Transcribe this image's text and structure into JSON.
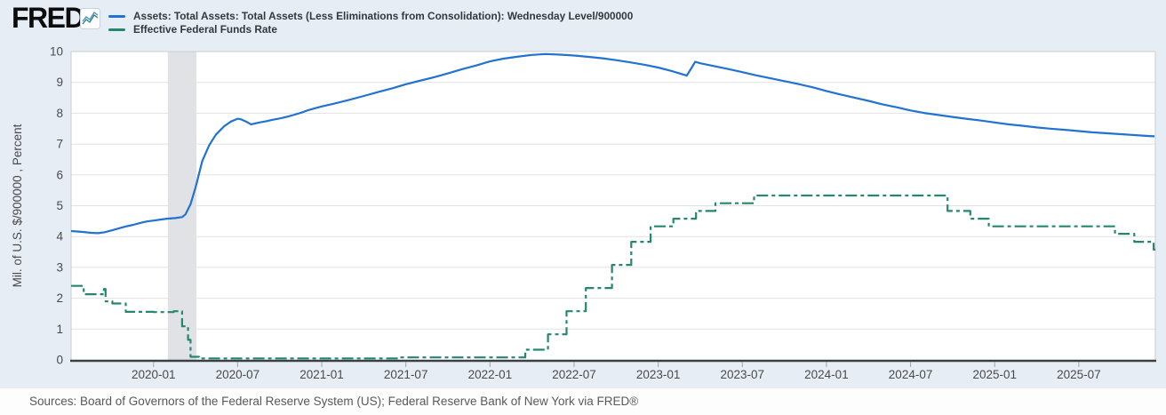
{
  "header": {
    "logo_text": "FRED",
    "logo_mark": "®",
    "legend": [
      {
        "label": "Assets: Total Assets: Total Assets (Less Eliminations from Consolidation): Wednesday Level/900000",
        "color": "#2272d2",
        "line_style": "solid"
      },
      {
        "label": "Effective Federal Funds Rate",
        "color": "#25876f",
        "line_style": "dash-dot"
      }
    ]
  },
  "footer": {
    "sources": "Sources: Board of Governors of the Federal Reserve System (US); Federal Reserve Bank of New York via FRED®"
  },
  "chart_data": {
    "type": "line",
    "ylabel": "Mil. of U.S. $/900000 , Percent",
    "ylim": [
      0,
      10
    ],
    "y_ticks": [
      0,
      1,
      2,
      3,
      4,
      5,
      6,
      7,
      8,
      9,
      10
    ],
    "x_domain": [
      2019.51,
      2025.955
    ],
    "x_ticks": [
      {
        "t": 2020.0,
        "label": "2020-01"
      },
      {
        "t": 2020.5,
        "label": "2020-07"
      },
      {
        "t": 2021.0,
        "label": "2021-01"
      },
      {
        "t": 2021.5,
        "label": "2021-07"
      },
      {
        "t": 2022.0,
        "label": "2022-01"
      },
      {
        "t": 2022.5,
        "label": "2022-07"
      },
      {
        "t": 2023.0,
        "label": "2023-01"
      },
      {
        "t": 2023.5,
        "label": "2023-07"
      },
      {
        "t": 2024.0,
        "label": "2024-01"
      },
      {
        "t": 2024.5,
        "label": "2024-07"
      },
      {
        "t": 2025.0,
        "label": "2025-01"
      },
      {
        "t": 2025.5,
        "label": "2025-07"
      }
    ],
    "grid": true,
    "legend_position": "top-left",
    "recession_band": {
      "from": 2020.085,
      "to": 2020.255,
      "color": "#e0e2e6"
    },
    "colors": {
      "axis": "#3b4045",
      "grid": "#e2e2e2",
      "border": "#c8cdd2",
      "tick_text": "#4a4a4a"
    },
    "series": [
      {
        "name": "Assets: Total Assets: Total Assets (Less Eliminations from Consolidation): Wednesday Level/900000",
        "color": "#2272d2",
        "line_style": "solid",
        "render": "linear",
        "points": [
          [
            2019.51,
            4.18
          ],
          [
            2019.58,
            4.15
          ],
          [
            2019.63,
            4.12
          ],
          [
            2019.67,
            4.11
          ],
          [
            2019.71,
            4.14
          ],
          [
            2019.75,
            4.2
          ],
          [
            2019.79,
            4.26
          ],
          [
            2019.83,
            4.32
          ],
          [
            2019.88,
            4.38
          ],
          [
            2019.92,
            4.44
          ],
          [
            2019.96,
            4.49
          ],
          [
            2020.0,
            4.52
          ],
          [
            2020.04,
            4.55
          ],
          [
            2020.08,
            4.58
          ],
          [
            2020.13,
            4.6
          ],
          [
            2020.17,
            4.63
          ],
          [
            2020.19,
            4.72
          ],
          [
            2020.22,
            5.05
          ],
          [
            2020.25,
            5.6
          ],
          [
            2020.29,
            6.45
          ],
          [
            2020.33,
            6.95
          ],
          [
            2020.37,
            7.3
          ],
          [
            2020.42,
            7.58
          ],
          [
            2020.46,
            7.73
          ],
          [
            2020.5,
            7.82
          ],
          [
            2020.52,
            7.8
          ],
          [
            2020.56,
            7.7
          ],
          [
            2020.58,
            7.64
          ],
          [
            2020.63,
            7.7
          ],
          [
            2020.67,
            7.74
          ],
          [
            2020.71,
            7.79
          ],
          [
            2020.75,
            7.83
          ],
          [
            2020.79,
            7.88
          ],
          [
            2020.83,
            7.94
          ],
          [
            2020.88,
            8.02
          ],
          [
            2020.92,
            8.1
          ],
          [
            2020.96,
            8.16
          ],
          [
            2021.0,
            8.22
          ],
          [
            2021.08,
            8.32
          ],
          [
            2021.17,
            8.44
          ],
          [
            2021.25,
            8.56
          ],
          [
            2021.33,
            8.68
          ],
          [
            2021.42,
            8.81
          ],
          [
            2021.5,
            8.94
          ],
          [
            2021.58,
            9.05
          ],
          [
            2021.67,
            9.17
          ],
          [
            2021.75,
            9.29
          ],
          [
            2021.83,
            9.42
          ],
          [
            2021.92,
            9.55
          ],
          [
            2022.0,
            9.68
          ],
          [
            2022.08,
            9.77
          ],
          [
            2022.17,
            9.84
          ],
          [
            2022.25,
            9.89
          ],
          [
            2022.33,
            9.92
          ],
          [
            2022.42,
            9.9
          ],
          [
            2022.5,
            9.87
          ],
          [
            2022.58,
            9.83
          ],
          [
            2022.67,
            9.78
          ],
          [
            2022.75,
            9.72
          ],
          [
            2022.83,
            9.65
          ],
          [
            2022.92,
            9.57
          ],
          [
            2023.0,
            9.48
          ],
          [
            2023.08,
            9.37
          ],
          [
            2023.17,
            9.22
          ],
          [
            2023.22,
            9.67
          ],
          [
            2023.25,
            9.62
          ],
          [
            2023.33,
            9.53
          ],
          [
            2023.42,
            9.43
          ],
          [
            2023.5,
            9.33
          ],
          [
            2023.58,
            9.23
          ],
          [
            2023.67,
            9.13
          ],
          [
            2023.75,
            9.04
          ],
          [
            2023.83,
            8.95
          ],
          [
            2023.92,
            8.84
          ],
          [
            2024.0,
            8.72
          ],
          [
            2024.08,
            8.61
          ],
          [
            2024.17,
            8.5
          ],
          [
            2024.25,
            8.4
          ],
          [
            2024.33,
            8.29
          ],
          [
            2024.42,
            8.19
          ],
          [
            2024.5,
            8.09
          ],
          [
            2024.58,
            8.01
          ],
          [
            2024.67,
            7.94
          ],
          [
            2024.75,
            7.88
          ],
          [
            2024.83,
            7.82
          ],
          [
            2024.92,
            7.76
          ],
          [
            2025.0,
            7.7
          ],
          [
            2025.08,
            7.64
          ],
          [
            2025.17,
            7.59
          ],
          [
            2025.25,
            7.54
          ],
          [
            2025.33,
            7.5
          ],
          [
            2025.42,
            7.46
          ],
          [
            2025.5,
            7.42
          ],
          [
            2025.58,
            7.38
          ],
          [
            2025.67,
            7.35
          ],
          [
            2025.75,
            7.32
          ],
          [
            2025.83,
            7.29
          ],
          [
            2025.92,
            7.26
          ],
          [
            2025.95,
            7.25
          ]
        ]
      },
      {
        "name": "Effective Federal Funds Rate",
        "color": "#25876f",
        "line_style": "dash-dot",
        "render": "step",
        "points": [
          [
            2019.51,
            2.4
          ],
          [
            2019.585,
            2.13
          ],
          [
            2019.7,
            2.13
          ],
          [
            2019.705,
            2.3
          ],
          [
            2019.715,
            1.9
          ],
          [
            2019.755,
            1.83
          ],
          [
            2019.835,
            1.56
          ],
          [
            2020.0,
            1.55
          ],
          [
            2020.12,
            1.58
          ],
          [
            2020.17,
            1.09
          ],
          [
            2020.205,
            0.65
          ],
          [
            2020.22,
            0.1
          ],
          [
            2020.27,
            0.05
          ],
          [
            2021.46,
            0.08
          ],
          [
            2022.21,
            0.33
          ],
          [
            2022.345,
            0.83
          ],
          [
            2022.455,
            1.58
          ],
          [
            2022.57,
            2.33
          ],
          [
            2022.725,
            3.08
          ],
          [
            2022.84,
            3.83
          ],
          [
            2022.955,
            4.33
          ],
          [
            2023.09,
            4.58
          ],
          [
            2023.225,
            4.83
          ],
          [
            2023.34,
            5.08
          ],
          [
            2023.57,
            5.33
          ],
          [
            2024.72,
            4.83
          ],
          [
            2024.855,
            4.58
          ],
          [
            2024.965,
            4.33
          ],
          [
            2025.715,
            4.09
          ],
          [
            2025.83,
            3.83
          ],
          [
            2025.945,
            3.58
          ],
          [
            2025.955,
            3.58
          ]
        ]
      }
    ]
  }
}
